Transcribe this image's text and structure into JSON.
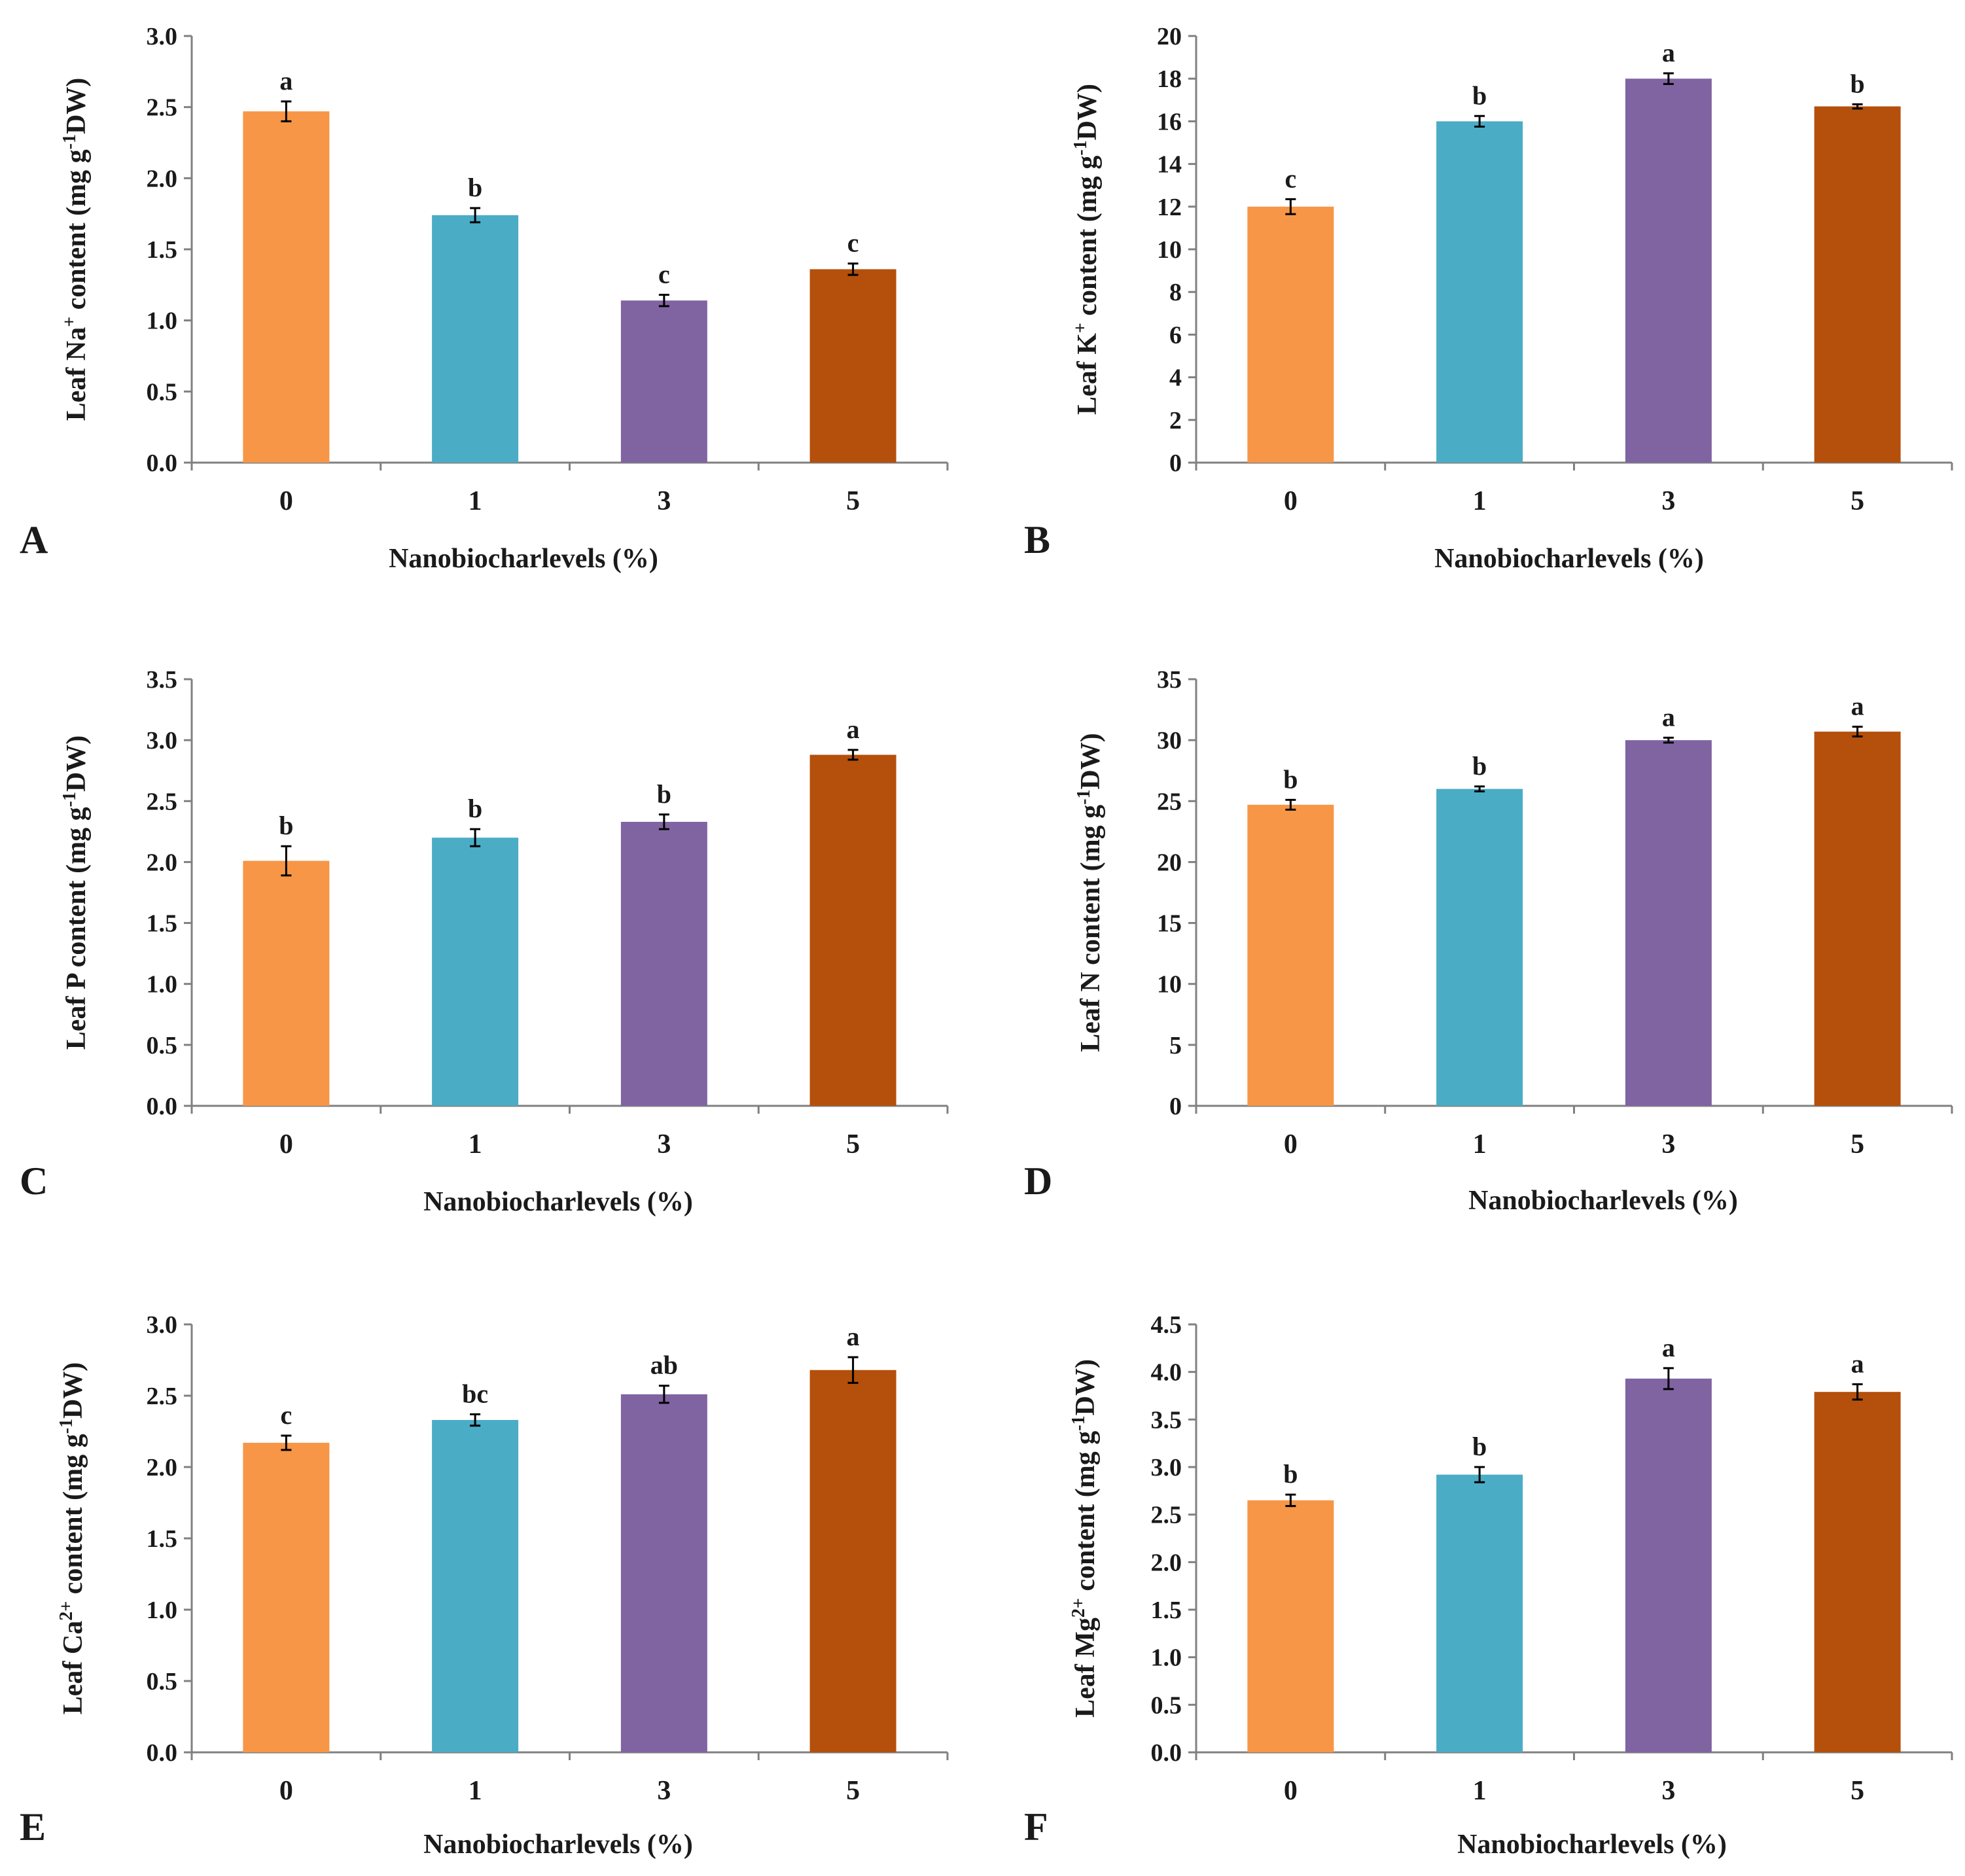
{
  "chart_data": [
    {
      "panel": "A",
      "type": "bar",
      "categories": [
        "0",
        "1",
        "3",
        "5"
      ],
      "values": [
        2.47,
        1.74,
        1.14,
        1.36
      ],
      "errors": [
        0.07,
        0.05,
        0.04,
        0.04
      ],
      "letters": [
        "a",
        "b",
        "c",
        "c"
      ],
      "ylabel_pre": "Leaf Na",
      "ylabel_sup": "+",
      "ylabel_post": " content (mg g",
      "ylabel_sup2": "-1",
      "ylabel_end": "DW)",
      "xlabel": "Nanobiocharlevels (%)",
      "ylim": [
        0,
        3.0
      ],
      "yticks": [
        "0.0",
        "0.5",
        "1.0",
        "1.5",
        "2.0",
        "2.5",
        "3.0"
      ],
      "bold_xticks": true
    },
    {
      "panel": "B",
      "type": "bar",
      "categories": [
        "0",
        "1",
        "3",
        "5"
      ],
      "values": [
        12.0,
        16.0,
        18.0,
        16.7
      ],
      "errors": [
        0.35,
        0.25,
        0.25,
        0.1
      ],
      "letters": [
        "c",
        "b",
        "a",
        "b"
      ],
      "ylabel_pre": "Leaf K",
      "ylabel_sup": "+",
      "ylabel_post": " content (mg g",
      "ylabel_sup2": "-1",
      "ylabel_end": "DW)",
      "xlabel": "Nanobiocharlevels (%)",
      "ylim": [
        0,
        20
      ],
      "yticks": [
        "0",
        "2",
        "4",
        "6",
        "8",
        "10",
        "12",
        "14",
        "16",
        "18",
        "20"
      ],
      "bold_xticks": true
    },
    {
      "panel": "C",
      "type": "bar",
      "categories": [
        "0",
        "1",
        "3",
        "5"
      ],
      "values": [
        2.01,
        2.2,
        2.33,
        2.88
      ],
      "errors": [
        0.12,
        0.07,
        0.06,
        0.04
      ],
      "letters": [
        "b",
        "b",
        "b",
        "a"
      ],
      "ylabel_pre": "Leaf P",
      "ylabel_sup": "",
      "ylabel_post": " content (mg g",
      "ylabel_sup2": "-1",
      "ylabel_end": "DW)",
      "xlabel": "Nanobiocharlevels (%)",
      "ylim": [
        0,
        3.5
      ],
      "yticks": [
        "0.0",
        "0.5",
        "1.0",
        "1.5",
        "2.0",
        "2.5",
        "3.0",
        "3.5"
      ],
      "bold_xticks": true
    },
    {
      "panel": "D",
      "type": "bar",
      "categories": [
        "0",
        "1",
        "3",
        "5"
      ],
      "values": [
        24.7,
        26.0,
        30.0,
        30.7
      ],
      "errors": [
        0.4,
        0.2,
        0.2,
        0.4
      ],
      "letters": [
        "b",
        "b",
        "a",
        "a"
      ],
      "ylabel_pre": "Leaf N",
      "ylabel_sup": "",
      "ylabel_post": " content (mg g",
      "ylabel_sup2": "-1",
      "ylabel_end": "DW)",
      "xlabel": "Nanobiocharlevels (%)",
      "ylim": [
        0,
        35
      ],
      "yticks": [
        "0",
        "5",
        "10",
        "15",
        "20",
        "25",
        "30",
        "35"
      ],
      "bold_xticks": true
    },
    {
      "panel": "E",
      "type": "bar",
      "categories": [
        "0",
        "1",
        "3",
        "5"
      ],
      "values": [
        2.17,
        2.33,
        2.51,
        2.68
      ],
      "errors": [
        0.05,
        0.04,
        0.06,
        0.09
      ],
      "letters": [
        "c",
        "bc",
        "ab",
        "a"
      ],
      "ylabel_pre": "Leaf Ca",
      "ylabel_sup": "2+",
      "ylabel_post": " content (mg g",
      "ylabel_sup2": "-1",
      "ylabel_end": "DW)",
      "xlabel": "Nanobiocharlevels (%)",
      "ylim": [
        0,
        3.0
      ],
      "yticks": [
        "0.0",
        "0.5",
        "1.0",
        "1.5",
        "2.0",
        "2.5",
        "3.0"
      ],
      "bold_xticks": false
    },
    {
      "panel": "F",
      "type": "bar",
      "categories": [
        "0",
        "1",
        "3",
        "5"
      ],
      "values": [
        2.65,
        2.92,
        3.93,
        3.79
      ],
      "errors": [
        0.06,
        0.08,
        0.11,
        0.08
      ],
      "letters": [
        "b",
        "b",
        "a",
        "a"
      ],
      "ylabel_pre": "Leaf Mg",
      "ylabel_sup": "2+",
      "ylabel_post": " content (mg g",
      "ylabel_sup2": "-1",
      "ylabel_end": "DW)",
      "xlabel": "Nanobiocharlevels (%)",
      "ylim": [
        0,
        4.5
      ],
      "yticks": [
        "0.0",
        "0.5",
        "1.0",
        "1.5",
        "2.0",
        "2.5",
        "3.0",
        "3.5",
        "4.0",
        "4.5"
      ],
      "bold_xticks": true
    }
  ],
  "colors": {
    "bars": [
      "#F79646",
      "#4BACC6",
      "#8064A2",
      "#B4500C"
    ],
    "axis": "#808080",
    "text": "#1a1a1a"
  }
}
